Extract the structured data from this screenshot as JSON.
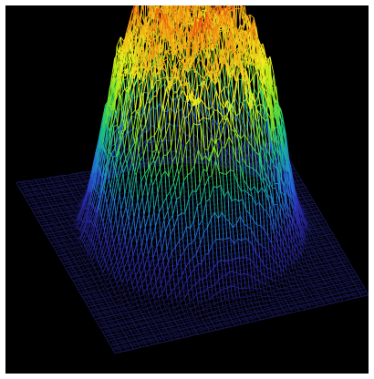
{
  "figure": {
    "background_color": "#000000",
    "frame_color": "#ffffff",
    "colormap": [
      "#1a1a6a",
      "#2b2bb0",
      "#1e7fd8",
      "#18c878",
      "#8ee61a",
      "#f4f01e",
      "#f0a014",
      "#e81e0c"
    ]
  }
}
